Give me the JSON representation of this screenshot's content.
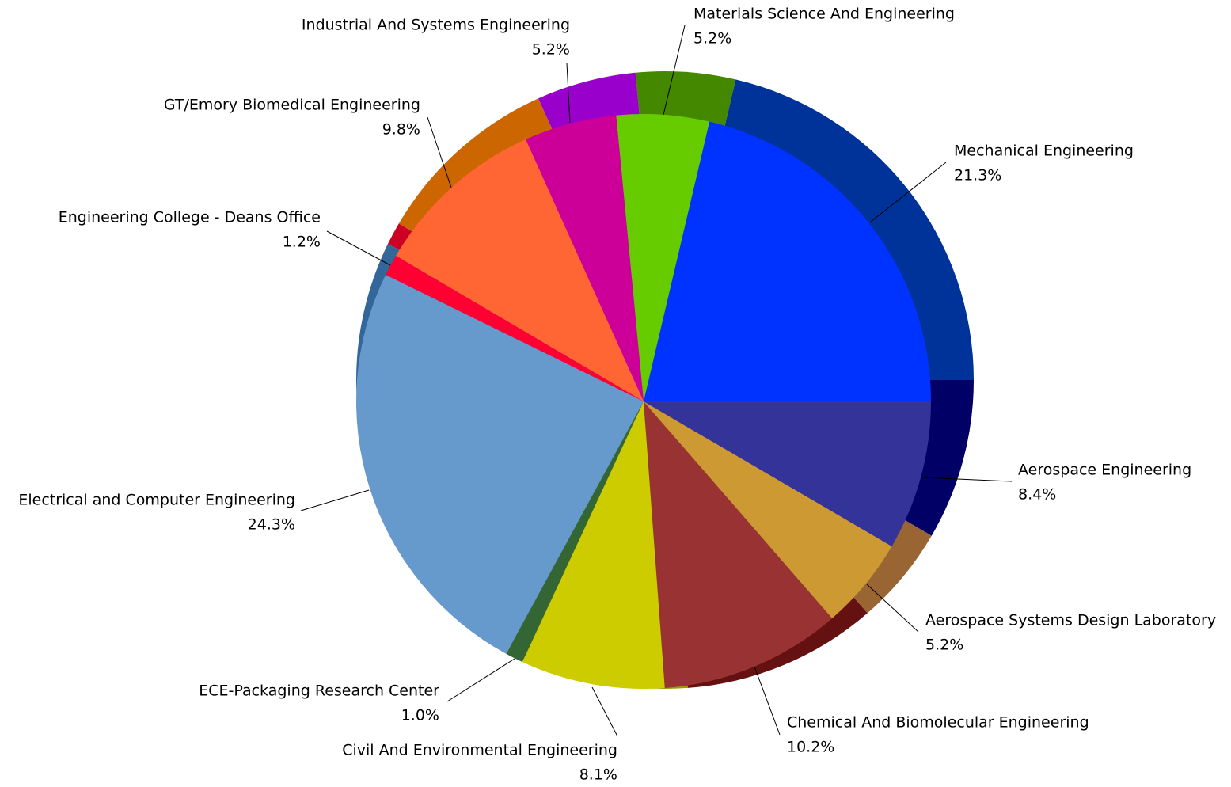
{
  "chart_data": {
    "type": "pie",
    "categories": [
      "Mechanical Engineering",
      "Materials Science And Engineering",
      "Industrial And Systems Engineering",
      "GT/Emory Biomedical Engineering",
      "Engineering College - Deans Office",
      "Electrical and Computer Engineering",
      "ECE-Packaging Research Center",
      "Civil And Environmental Engineering",
      "Chemical And Biomolecular Engineering",
      "Aerospace Systems Design Laboratory",
      "Aerospace Engineering"
    ],
    "values": [
      21.3,
      5.2,
      5.2,
      9.8,
      1.2,
      24.3,
      1.0,
      8.1,
      10.2,
      5.2,
      8.4
    ],
    "value_labels": [
      "21.3%",
      "5.2%",
      "5.2%",
      "9.8%",
      "1.2%",
      "24.3%",
      "1.0%",
      "8.1%",
      "10.2%",
      "5.2%",
      "8.4%"
    ],
    "colors": [
      "#0033ff",
      "#66cc00",
      "#cc0099",
      "#ff6633",
      "#ff0033",
      "#6699cc",
      "#336633",
      "#cccc00",
      "#993333",
      "#cc9933",
      "#333399"
    ],
    "depth_colors": [
      "#003399",
      "#448800",
      "#9900cc",
      "#cc6600",
      "#cc0022",
      "#336699",
      "#224422",
      "#999900",
      "#661111",
      "#996633",
      "#000066"
    ]
  }
}
